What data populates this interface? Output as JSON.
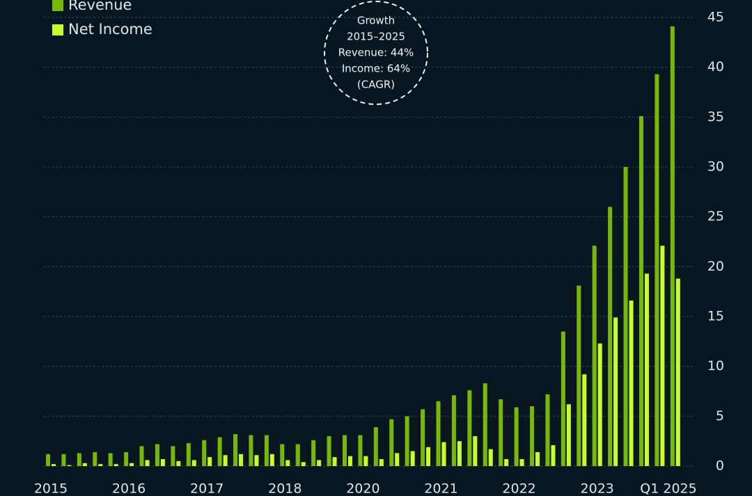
{
  "chart_data": {
    "type": "bar",
    "categories": [
      "2015",
      null,
      null,
      null,
      null,
      "2016",
      null,
      null,
      null,
      null,
      "2017",
      null,
      null,
      null,
      null,
      "2018",
      null,
      null,
      null,
      null,
      "2020",
      null,
      null,
      null,
      null,
      "2021",
      null,
      null,
      null,
      null,
      "2022",
      null,
      null,
      null,
      null,
      "2023",
      null,
      null,
      null,
      null,
      "Q1 2025"
    ],
    "series": [
      {
        "name": "Revenue",
        "color": "#76b900",
        "values": [
          1.2,
          1.2,
          1.3,
          1.4,
          1.3,
          1.4,
          2.0,
          2.2,
          2.0,
          2.3,
          2.6,
          2.9,
          3.2,
          3.1,
          3.1,
          2.2,
          2.2,
          2.6,
          3.0,
          3.1,
          3.1,
          3.9,
          4.7,
          5.0,
          5.7,
          6.5,
          7.1,
          7.6,
          8.3,
          6.7,
          5.9,
          6.0,
          7.2,
          13.5,
          18.1,
          22.1,
          26.0,
          30.0,
          35.1,
          39.3,
          44.1
        ]
      },
      {
        "name": "Net Income",
        "color": "#c8ff1e",
        "values": [
          0.2,
          0.1,
          0.3,
          0.2,
          0.2,
          0.3,
          0.6,
          0.7,
          0.5,
          0.6,
          0.9,
          1.1,
          1.2,
          1.1,
          1.2,
          0.6,
          0.4,
          0.6,
          0.9,
          1.0,
          1.0,
          0.7,
          1.3,
          1.5,
          1.9,
          2.4,
          2.5,
          3.0,
          1.7,
          0.7,
          0.7,
          1.4,
          2.1,
          6.2,
          9.2,
          12.3,
          14.9,
          16.6,
          19.3,
          22.1,
          18.8
        ]
      }
    ],
    "annotation": [
      "Growth",
      "2015–2025",
      "Revenue: 44%",
      "Income: 64%",
      "(CAGR)"
    ],
    "ylim": [
      0,
      45
    ],
    "yticks": [
      0,
      5,
      10,
      15,
      20,
      25,
      30,
      35,
      40,
      45
    ],
    "grid": true
  }
}
